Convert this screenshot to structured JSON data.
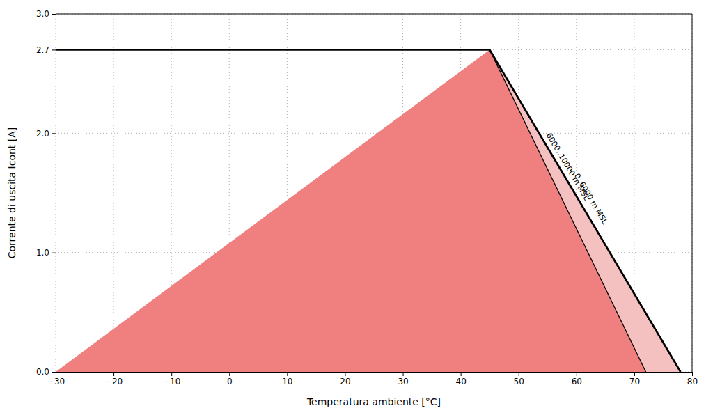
{
  "chart_data": {
    "type": "line",
    "xlabel": "Temperatura ambiente [°C]",
    "ylabel": "Corrente di uscita Icont [A]",
    "xlim": [
      -30,
      80
    ],
    "ylim": [
      0,
      3
    ],
    "xticks": [
      -30,
      -20,
      -10,
      0,
      10,
      20,
      30,
      40,
      50,
      60,
      70,
      80
    ],
    "yticks": [
      {
        "value": 0,
        "label": "0.0"
      },
      {
        "value": 1,
        "label": "1.0"
      },
      {
        "value": 2,
        "label": "2.0"
      },
      {
        "value": 2.7,
        "label": "2.7"
      },
      {
        "value": 3,
        "label": "3.0"
      }
    ],
    "grid": true,
    "series": [
      {
        "type": "area",
        "color": "#f08080",
        "x": [
          -30,
          78,
          45,
          -30
        ],
        "values": [
          0,
          0,
          2.7,
          0
        ]
      },
      {
        "type": "area",
        "color": "#f5c0c0",
        "x": [
          45,
          72,
          78,
          45
        ],
        "values": [
          2.7,
          0,
          0,
          2.7
        ]
      },
      {
        "type": "line",
        "color": "#000000",
        "x": [
          -30,
          45,
          78
        ],
        "values": [
          2.7,
          2.7,
          0
        ]
      },
      {
        "type": "line",
        "color": "#000000",
        "x": [
          45,
          72
        ],
        "values": [
          2.7,
          0
        ]
      }
    ],
    "annotations": [
      {
        "text": "0..6000 m MSL",
        "x": 62.5,
        "y": 1.45
      },
      {
        "text": "6000..10000 m MSL",
        "x": 58.5,
        "y": 1.72
      }
    ]
  }
}
